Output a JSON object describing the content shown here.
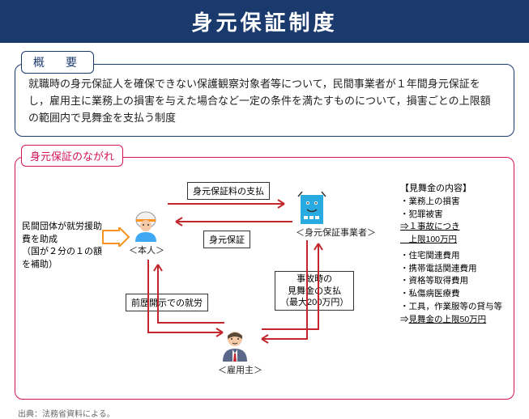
{
  "title": "身元保証制度",
  "overview": {
    "label": "概　要",
    "text": "就職時の身元保証人を確保できない保護観察対象者等について，民間事業者が１年間身元保証をし，雇用主に業務上の損害を与えた場合など一定の条件を満たすものについて，損害ごとの上限額の範囲内で見舞金を支払う制度"
  },
  "flow": {
    "label": "身元保証のながれ",
    "helper": "民間団体が就労援助費を助成\n（国が２分の１の額を補助）",
    "nodes": {
      "honnin": "＜本人＞",
      "guarantor": "＜身元保証事業者＞",
      "employer": "＜雇用主＞"
    },
    "edges": {
      "fee": "身元保証料の支払",
      "guarantee": "身元保証",
      "employ": "前歴開示での就労",
      "payout": "事故時の\n見舞金の支払\n（最大200万円）"
    },
    "payout_box": {
      "title": "【見舞金の内容】",
      "group1": [
        "・業務上の損害",
        "・犯罪被害"
      ],
      "limit1": "⇒１事故につき\n　上限100万円",
      "group2": [
        "・住宅関連費用",
        "・携帯電話関連費用",
        "・資格等取得費用",
        "・私傷病医療費",
        "・工具，作業服等の貸与等"
      ],
      "limit2": "⇒見舞金の上限50万円"
    }
  },
  "colors": {
    "navy": "#1a3a6e",
    "magenta": "#d4145a",
    "arrow_red": "#c1272d",
    "arrow_orange": "#f7931e",
    "building": "#29abe2",
    "suit": "#5a6788",
    "skin": "#f5c9a6",
    "helmet": "#f2f2f2"
  },
  "source": "出典：法務省資料による。"
}
